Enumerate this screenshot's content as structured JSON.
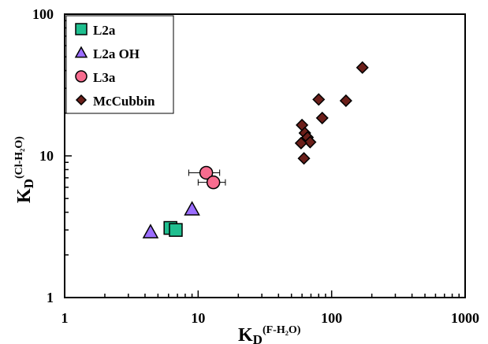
{
  "chart_data": {
    "type": "scatter",
    "x_scale": "log",
    "y_scale": "log",
    "xlim": [
      1,
      1000
    ],
    "ylim": [
      1,
      100
    ],
    "x_ticks": [
      "1",
      "10",
      "100",
      "1000"
    ],
    "y_ticks": [
      "1",
      "10",
      "100"
    ],
    "xlabel": {
      "main": "K",
      "sub": "D",
      "sup": "(F-H₂O)"
    },
    "ylabel": {
      "main": "K",
      "sub": "D",
      "sup": "(Cl-H₂O)"
    },
    "grid": false,
    "legend_position": "top-left",
    "series": [
      {
        "name": "L2a",
        "marker": "square",
        "color": "#1fbf8f",
        "points": [
          {
            "x": 6.2,
            "y": 3.1,
            "xerr": 0.6
          },
          {
            "x": 6.8,
            "y": 3.0
          }
        ]
      },
      {
        "name": "L2a OH",
        "marker": "triangle",
        "color": "#9b6dff",
        "points": [
          {
            "x": 4.4,
            "y": 2.9
          },
          {
            "x": 9.0,
            "y": 4.2
          }
        ]
      },
      {
        "name": "L3a",
        "marker": "circle",
        "color": "#f76c8f",
        "points": [
          {
            "x": 11.5,
            "y": 7.6,
            "xerr": 3.0
          },
          {
            "x": 13.0,
            "y": 6.5,
            "xerr": 3.0
          }
        ]
      },
      {
        "name": "McCubbin",
        "marker": "diamond",
        "color": "#6b1f1a",
        "points": [
          {
            "x": 170,
            "y": 42
          },
          {
            "x": 80,
            "y": 25
          },
          {
            "x": 128,
            "y": 24.5
          },
          {
            "x": 85,
            "y": 18.5
          },
          {
            "x": 60,
            "y": 16.5
          },
          {
            "x": 63,
            "y": 14.5
          },
          {
            "x": 66,
            "y": 13.5
          },
          {
            "x": 69,
            "y": 12.5
          },
          {
            "x": 59,
            "y": 12.3
          },
          {
            "x": 62,
            "y": 9.6
          }
        ]
      }
    ]
  }
}
